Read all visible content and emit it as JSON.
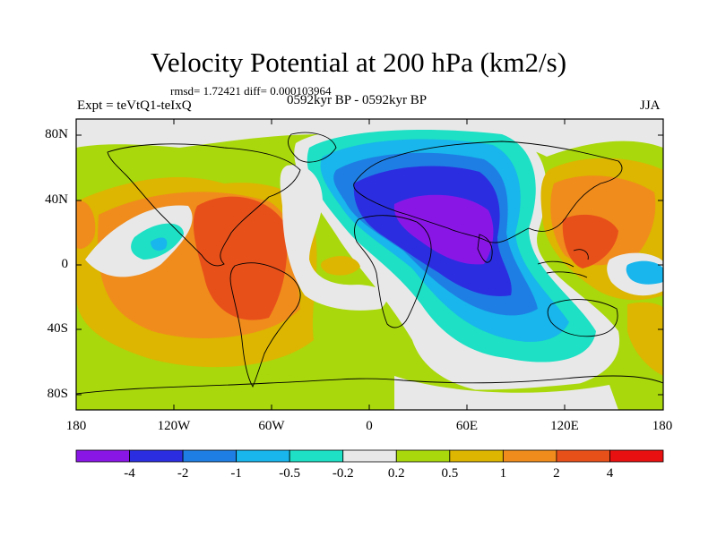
{
  "title": "Velocity Potential at 200 hPa (km2/s)",
  "stats": "rmsd= 1.72421 diff= 0.000103964",
  "experiment": "Expt = teVtQ1-teIxQ",
  "period": "0592kyr BP - 0592kyr BP",
  "season": "JJA",
  "y_ticks": [
    "80N",
    "40N",
    "0",
    "40S",
    "80S"
  ],
  "x_ticks": [
    "180",
    "120W",
    "60W",
    "0",
    "60E",
    "120E",
    "180"
  ],
  "colorbar": {
    "colors": [
      "#8a16e6",
      "#2b2ee0",
      "#1f7ee4",
      "#18b6ec",
      "#1de0c4",
      "#e8e8e8",
      "#a9d80c",
      "#dcb600",
      "#f08c1c",
      "#e8501a",
      "#e81010"
    ],
    "labels": [
      "-4",
      "-2",
      "-1",
      "-0.5",
      "-0.2",
      "0.2",
      "0.5",
      "1",
      "2",
      "4"
    ]
  }
}
